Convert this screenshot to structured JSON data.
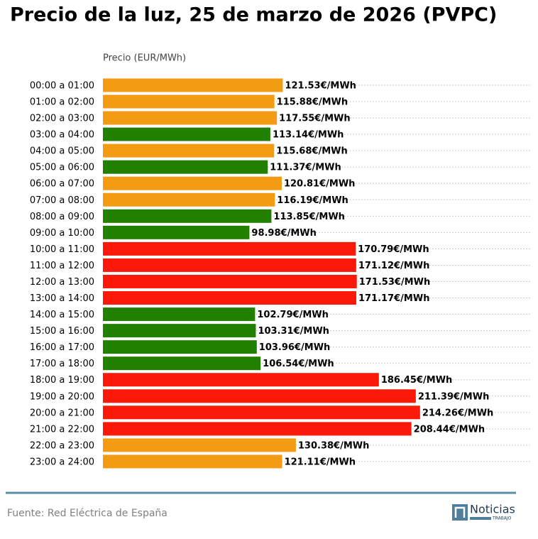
{
  "chart_data": {
    "type": "bar",
    "orientation": "horizontal",
    "title": "Precio de la luz, 25 de marzo de 2026 (PVPC)",
    "x_label": "Precio (EUR/MWh)",
    "categories": [
      "00:00 a 01:00",
      "01:00 a 02:00",
      "02:00 a 03:00",
      "03:00 a 04:00",
      "04:00 a 05:00",
      "05:00 a 06:00",
      "06:00 a 07:00",
      "07:00 a 08:00",
      "08:00 a 09:00",
      "09:00 a 10:00",
      "10:00 a 11:00",
      "11:00 a 12:00",
      "12:00 a 13:00",
      "13:00 a 14:00",
      "14:00 a 15:00",
      "15:00 a 16:00",
      "16:00 a 17:00",
      "17:00 a 18:00",
      "18:00 a 19:00",
      "19:00 a 20:00",
      "20:00 a 21:00",
      "21:00 a 22:00",
      "22:00 a 23:00",
      "23:00 a 24:00"
    ],
    "values": [
      121.53,
      115.88,
      117.55,
      113.14,
      115.68,
      111.37,
      120.81,
      116.19,
      113.85,
      98.98,
      170.79,
      171.12,
      171.53,
      171.17,
      102.79,
      103.31,
      103.96,
      106.54,
      186.45,
      211.39,
      214.26,
      208.44,
      130.38,
      121.11
    ],
    "value_labels": [
      "121.53€/MWh",
      "115.88€/MWh",
      "117.55€/MWh",
      "113.14€/MWh",
      "115.68€/MWh",
      "111.37€/MWh",
      "120.81€/MWh",
      "116.19€/MWh",
      "113.85€/MWh",
      "98.98€/MWh",
      "170.79€/MWh",
      "171.12€/MWh",
      "171.53€/MWh",
      "171.17€/MWh",
      "102.79€/MWh",
      "103.31€/MWh",
      "103.96€/MWh",
      "106.54€/MWh",
      "186.45€/MWh",
      "211.39€/MWh",
      "214.26€/MWh",
      "208.44€/MWh",
      "130.38€/MWh",
      "121.11€/MWh"
    ],
    "colors": [
      "#f39c13",
      "#f39c13",
      "#f39c13",
      "#228000",
      "#f39c13",
      "#228000",
      "#f39c13",
      "#f39c13",
      "#228000",
      "#228000",
      "#fb1a0a",
      "#fb1a0a",
      "#fb1a0a",
      "#fb1a0a",
      "#228000",
      "#228000",
      "#228000",
      "#228000",
      "#fb1a0a",
      "#fb1a0a",
      "#fb1a0a",
      "#fb1a0a",
      "#f39c13",
      "#f39c13"
    ],
    "source": "Fuente: Red Eléctrica de España",
    "logo": {
      "name": "Noticias",
      "subtitle": "TRABAJO"
    }
  }
}
